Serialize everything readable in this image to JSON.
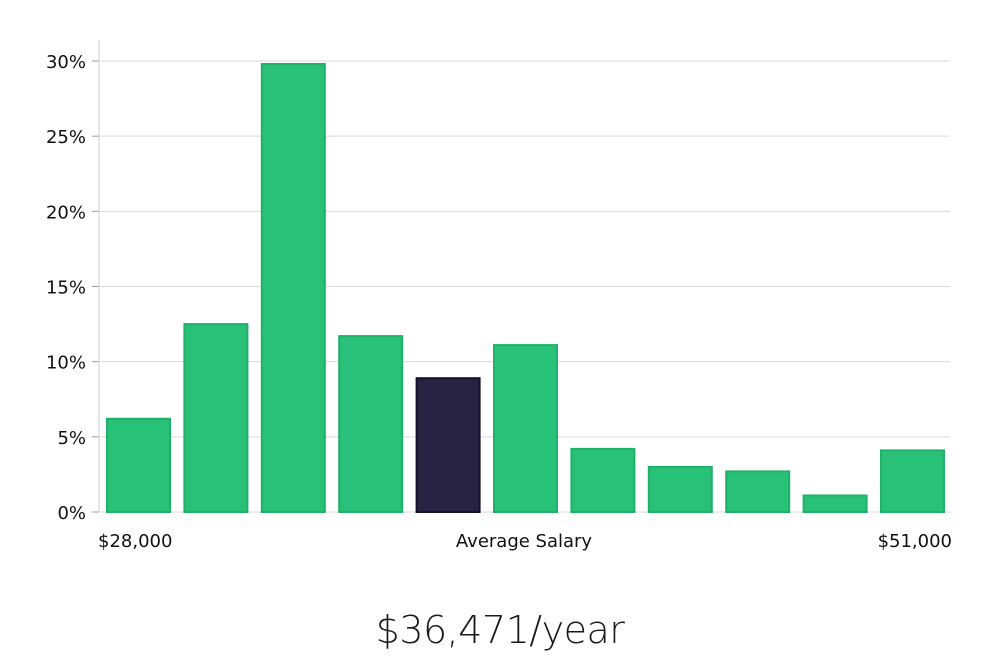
{
  "chart_data": {
    "type": "bar",
    "title": "",
    "ylabel": "",
    "ylim": [
      0,
      30
    ],
    "yticks": [
      "0%",
      "5%",
      "10%",
      "15%",
      "20%",
      "25%",
      "30%"
    ],
    "ytick_values": [
      0,
      5,
      10,
      15,
      20,
      25,
      30
    ],
    "x_labels": {
      "min": "$28,000",
      "center": "Average Salary",
      "max": "$51,000"
    },
    "values": [
      6.2,
      12.5,
      29.8,
      11.7,
      8.9,
      11.1,
      4.2,
      3.0,
      2.7,
      1.1,
      4.1
    ],
    "highlight_index": 4,
    "colors": {
      "bar": "#29c078",
      "bar_border": "#1fb06a",
      "highlight": "#272443",
      "highlight_border": "#14122a",
      "grid": "#d9d9d9",
      "axis": "#cccccc"
    }
  },
  "salary_text": "$36,471/year"
}
